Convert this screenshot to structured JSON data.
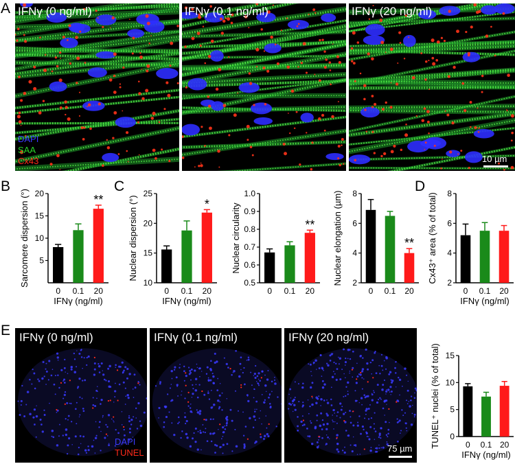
{
  "panel_letters": {
    "A": "A",
    "B": "B",
    "C": "C",
    "D": "D",
    "E": "E"
  },
  "panel_A": {
    "images": [
      {
        "label": "IFNγ (0 ng/ml)"
      },
      {
        "label": "IFNγ (0.1 ng/ml)"
      },
      {
        "label": "IFNγ (20 ng/ml)"
      }
    ],
    "legend": {
      "dapi": "DAPI",
      "saa": "SAA",
      "cx43": "Cx43"
    },
    "scale_bar": "10 µm",
    "colors": {
      "dapi": "#2a2aff",
      "saa": "#22cc22",
      "cx43": "#ff2a1a"
    }
  },
  "panel_E": {
    "images": [
      {
        "label": "IFNγ (0 ng/ml)"
      },
      {
        "label": "IFNγ (0.1 ng/ml)"
      },
      {
        "label": "IFNγ (20 ng/ml)"
      }
    ],
    "legend": {
      "dapi": "DAPI",
      "tunel": "TUNEL"
    },
    "scale_bar": "75 µm"
  },
  "group_colors": [
    "#000000",
    "#1a8a1a",
    "#ff1a1a"
  ],
  "chart_data": [
    {
      "id": "B",
      "type": "bar",
      "categories": [
        "0",
        "0.1",
        "20"
      ],
      "values": [
        8.0,
        11.8,
        16.6
      ],
      "errors": [
        0.6,
        1.4,
        0.8
      ],
      "significance": [
        "",
        "",
        "**"
      ],
      "ylabel": "Sarcomere dispersion (°)",
      "xlabel": "IFNγ (ng/ml)",
      "ylim": [
        0,
        20
      ],
      "yticks": [
        "5",
        "10",
        "15",
        "20"
      ]
    },
    {
      "id": "C1",
      "type": "bar",
      "categories": [
        "0",
        "0.1",
        "20"
      ],
      "values": [
        15.6,
        18.8,
        21.8
      ],
      "errors": [
        0.6,
        1.6,
        0.5
      ],
      "significance": [
        "",
        "",
        "*"
      ],
      "ylabel": "Nuclear dispersion (°)",
      "xlabel": "IFNγ (ng/ml)",
      "ylim": [
        10,
        25
      ],
      "yticks": [
        "10",
        "15",
        "20",
        "25"
      ]
    },
    {
      "id": "C2",
      "type": "bar",
      "categories": [
        "0",
        "0.1",
        "20"
      ],
      "values": [
        0.67,
        0.71,
        0.78
      ],
      "errors": [
        0.02,
        0.02,
        0.015
      ],
      "significance": [
        "",
        "",
        "**"
      ],
      "ylabel": "Nuclear circularity",
      "xlabel": "",
      "ylim": [
        0.5,
        1.0
      ],
      "yticks": [
        "0.5",
        "0.6",
        "0.7",
        "0.8",
        "0.9",
        "1.0"
      ]
    },
    {
      "id": "C3",
      "type": "bar",
      "categories": [
        "0",
        "0.1",
        "20"
      ],
      "values": [
        6.9,
        6.5,
        4.0
      ],
      "errors": [
        0.7,
        0.3,
        0.3
      ],
      "significance": [
        "",
        "",
        "**"
      ],
      "ylabel": "Nuclear elongation (µm)",
      "xlabel": "",
      "ylim": [
        2,
        8
      ],
      "yticks": [
        "2",
        "4",
        "6",
        "8"
      ]
    },
    {
      "id": "D",
      "type": "bar",
      "categories": [
        "0",
        "0.1",
        "20"
      ],
      "values": [
        5.2,
        5.5,
        5.5
      ],
      "errors": [
        0.75,
        0.55,
        0.35
      ],
      "significance": [
        "",
        "",
        ""
      ],
      "ylabel": "Cx43⁺ area (% of total)",
      "xlabel": "IFNγ (ng/ml)",
      "ylim": [
        2,
        8
      ],
      "yticks": [
        "2",
        "4",
        "6",
        "8"
      ]
    },
    {
      "id": "E",
      "type": "bar",
      "categories": [
        "0",
        "0.1",
        "20"
      ],
      "values": [
        9.3,
        7.4,
        9.4
      ],
      "errors": [
        0.5,
        0.8,
        0.8
      ],
      "significance": [
        "",
        "",
        ""
      ],
      "ylabel": "TUNEL⁺ nuclei (% of total)",
      "xlabel": "IFNγ (ng/ml)",
      "ylim": [
        0,
        15
      ],
      "yticks": [
        "0",
        "5",
        "10",
        "15"
      ]
    }
  ]
}
